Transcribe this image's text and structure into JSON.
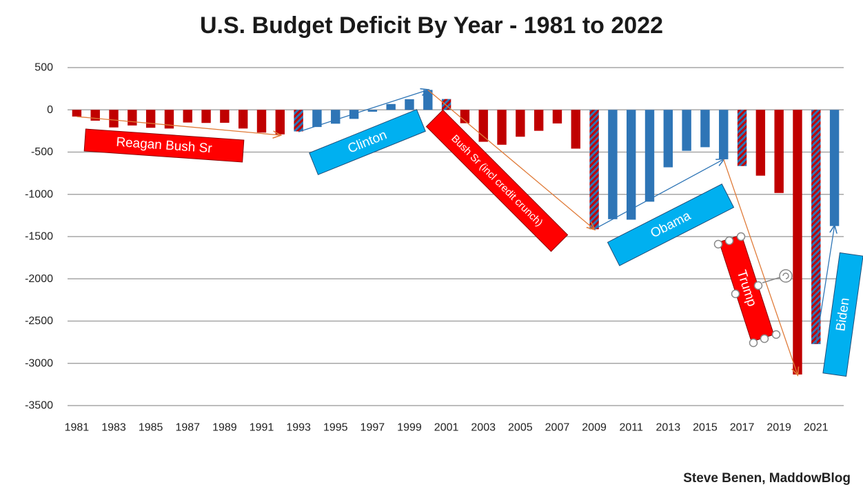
{
  "chart_data": {
    "type": "bar",
    "title": "U.S. Budget Deficit By Year - 1981 to 2022",
    "xlabel": "",
    "ylabel": "",
    "ylim": [
      -3500,
      500
    ],
    "yticks": [
      500,
      0,
      -500,
      -1000,
      -1500,
      -2000,
      -2500,
      -3000,
      -3500
    ],
    "xtick_labels": [
      "1981",
      "1983",
      "1985",
      "1987",
      "1989",
      "1991",
      "1993",
      "1995",
      "1997",
      "1999",
      "2001",
      "2003",
      "2005",
      "2007",
      "2009",
      "2011",
      "2013",
      "2015",
      "2017",
      "2019",
      "2021"
    ],
    "grid": true,
    "legend": "none",
    "colors": {
      "republican": "#c00000",
      "democrat": "#2e75b6",
      "transition_a": "#c00000",
      "transition_b": "#2e75b6"
    },
    "bars": [
      {
        "year": 1981,
        "value": -79,
        "party": "republican"
      },
      {
        "year": 1982,
        "value": -128,
        "party": "republican"
      },
      {
        "year": 1983,
        "value": -208,
        "party": "republican"
      },
      {
        "year": 1984,
        "value": -185,
        "party": "republican"
      },
      {
        "year": 1985,
        "value": -212,
        "party": "republican"
      },
      {
        "year": 1986,
        "value": -221,
        "party": "republican"
      },
      {
        "year": 1987,
        "value": -150,
        "party": "republican"
      },
      {
        "year": 1988,
        "value": -155,
        "party": "republican"
      },
      {
        "year": 1989,
        "value": -153,
        "party": "republican"
      },
      {
        "year": 1990,
        "value": -221,
        "party": "republican"
      },
      {
        "year": 1991,
        "value": -269,
        "party": "republican"
      },
      {
        "year": 1992,
        "value": -290,
        "party": "republican"
      },
      {
        "year": 1993,
        "value": -255,
        "party": "transition"
      },
      {
        "year": 1994,
        "value": -203,
        "party": "democrat"
      },
      {
        "year": 1995,
        "value": -164,
        "party": "democrat"
      },
      {
        "year": 1996,
        "value": -107,
        "party": "democrat"
      },
      {
        "year": 1997,
        "value": -22,
        "party": "democrat"
      },
      {
        "year": 1998,
        "value": 69,
        "party": "democrat"
      },
      {
        "year": 1999,
        "value": 126,
        "party": "democrat"
      },
      {
        "year": 2000,
        "value": 236,
        "party": "democrat"
      },
      {
        "year": 2001,
        "value": 128,
        "party": "transition"
      },
      {
        "year": 2002,
        "value": -158,
        "party": "republican"
      },
      {
        "year": 2003,
        "value": -378,
        "party": "republican"
      },
      {
        "year": 2004,
        "value": -413,
        "party": "republican"
      },
      {
        "year": 2005,
        "value": -318,
        "party": "republican"
      },
      {
        "year": 2006,
        "value": -248,
        "party": "republican"
      },
      {
        "year": 2007,
        "value": -161,
        "party": "republican"
      },
      {
        "year": 2008,
        "value": -459,
        "party": "republican"
      },
      {
        "year": 2009,
        "value": -1413,
        "party": "transition"
      },
      {
        "year": 2010,
        "value": -1294,
        "party": "democrat"
      },
      {
        "year": 2011,
        "value": -1300,
        "party": "democrat"
      },
      {
        "year": 2012,
        "value": -1087,
        "party": "democrat"
      },
      {
        "year": 2013,
        "value": -680,
        "party": "democrat"
      },
      {
        "year": 2014,
        "value": -485,
        "party": "democrat"
      },
      {
        "year": 2015,
        "value": -442,
        "party": "democrat"
      },
      {
        "year": 2016,
        "value": -585,
        "party": "democrat"
      },
      {
        "year": 2017,
        "value": -665,
        "party": "transition"
      },
      {
        "year": 2018,
        "value": -779,
        "party": "republican"
      },
      {
        "year": 2019,
        "value": -984,
        "party": "republican"
      },
      {
        "year": 2020,
        "value": -3132,
        "party": "republican"
      },
      {
        "year": 2021,
        "value": -2772,
        "party": "transition"
      },
      {
        "year": 2022,
        "value": -1375,
        "party": "democrat"
      }
    ],
    "trend_arrows": [
      {
        "from_year": 1981,
        "from_value": -80,
        "to_year": 1992,
        "to_value": -300,
        "color": "#e07b39"
      },
      {
        "from_year": 1993,
        "from_value": -260,
        "to_year": 2000,
        "to_value": 236,
        "color": "#2e75b6"
      },
      {
        "from_year": 2000,
        "from_value": 236,
        "to_year": 2009,
        "to_value": -1413,
        "color": "#e07b39"
      },
      {
        "from_year": 2009,
        "from_value": -1413,
        "to_year": 2016,
        "to_value": -585,
        "color": "#2e75b6"
      },
      {
        "from_year": 2016,
        "from_value": -585,
        "to_year": 2020,
        "to_value": -3132,
        "color": "#e07b39"
      },
      {
        "from_year": 2021,
        "from_value": -2772,
        "to_year": 2022,
        "to_value": -1375,
        "color": "#2e75b6"
      }
    ],
    "annotations": [
      {
        "text": "Reagan Bush Sr",
        "party": "republican"
      },
      {
        "text": "Clinton",
        "party": "democrat"
      },
      {
        "text": "Bush Sr (incl credit crunch)",
        "party": "republican"
      },
      {
        "text": "Obama",
        "party": "democrat"
      },
      {
        "text": "Trump",
        "party": "republican"
      },
      {
        "text": "Biden",
        "party": "democrat"
      }
    ]
  },
  "credit": "Steve Benen, MaddowBlog"
}
